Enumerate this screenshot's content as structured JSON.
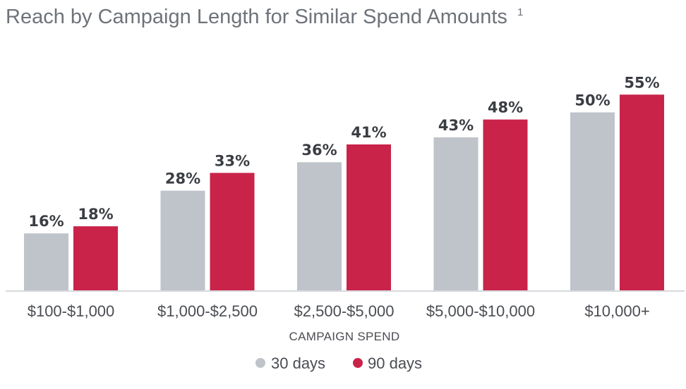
{
  "chart_data": {
    "type": "bar",
    "title": "Reach by Campaign Length for Similar Spend Amounts",
    "title_superscript": "1",
    "xlabel": "CAMPAIGN SPEND",
    "ylabel": "",
    "categories": [
      "$100-$1,000",
      "$1,000-$2,500",
      "$2,500-$5,000",
      "$5,000-$10,000",
      "$10,000+"
    ],
    "series": [
      {
        "name": "30 days",
        "color": "#bfc3ca",
        "values": [
          16,
          28,
          36,
          43,
          50
        ],
        "labels": [
          "16%",
          "28%",
          "36%",
          "43%",
          "50%"
        ]
      },
      {
        "name": "90 days",
        "color": "#c9234a",
        "values": [
          18,
          33,
          41,
          48,
          55
        ],
        "labels": [
          "18%",
          "33%",
          "41%",
          "48%",
          "55%"
        ]
      }
    ],
    "ylim": [
      0,
      55
    ],
    "grid": false,
    "legend_position": "bottom-center",
    "value_unit": "%"
  }
}
